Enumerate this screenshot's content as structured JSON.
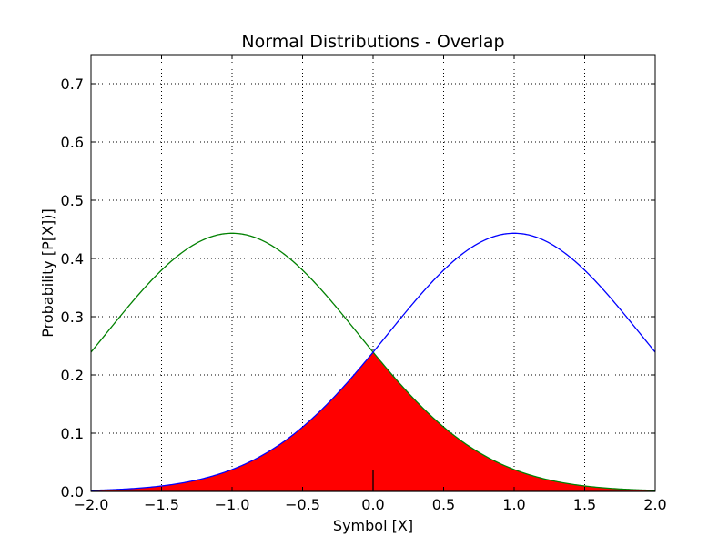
{
  "chart_data": {
    "type": "line",
    "title": "Normal Distributions - Overlap",
    "xlabel": "Symbol [X]",
    "ylabel": "Probability [P[X])]",
    "xlim": [
      -2.0,
      2.0
    ],
    "ylim": [
      0.0,
      0.75
    ],
    "grid": true,
    "legend": "none",
    "xticks": [
      -2.0,
      -1.5,
      -1.0,
      -0.5,
      0.0,
      0.5,
      1.0,
      1.5,
      2.0
    ],
    "xtick_labels": [
      "−2.0",
      "−1.5",
      "−1.0",
      "−0.5",
      "0.0",
      "0.5",
      "1.0",
      "1.5",
      "2.0"
    ],
    "yticks": [
      0.0,
      0.1,
      0.2,
      0.3,
      0.4,
      0.5,
      0.6,
      0.7
    ],
    "ytick_labels": [
      "0.0",
      "0.1",
      "0.2",
      "0.3",
      "0.4",
      "0.5",
      "0.6",
      "0.7"
    ],
    "series": [
      {
        "mean": -1.0,
        "std": 0.9,
        "color": "#008000"
      },
      {
        "mean": 1.0,
        "std": 0.9,
        "color": "#0000ff"
      }
    ],
    "overlap": {
      "color": "#ff0000",
      "divider_x": 0.0,
      "divider_y": 0.0368
    }
  }
}
